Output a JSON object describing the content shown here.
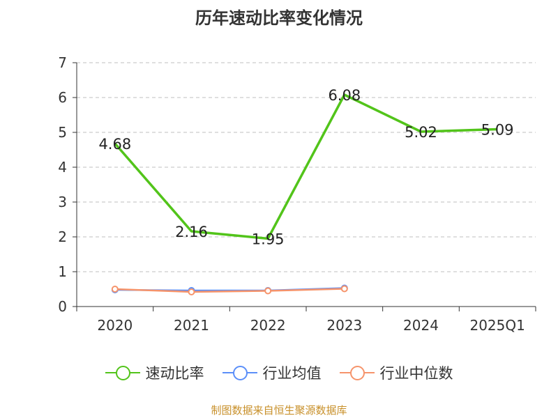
{
  "chart_data": {
    "type": "line",
    "title": "历年速动比率变化情况",
    "categories": [
      "2020",
      "2021",
      "2022",
      "2023",
      "2024",
      "2025Q1"
    ],
    "ylim": [
      0,
      7
    ],
    "yticks": [
      0,
      1,
      2,
      3,
      4,
      5,
      6,
      7
    ],
    "grid": true,
    "legend_position": "bottom",
    "series": [
      {
        "name": "速动比率",
        "color": "#52c41a",
        "values": [
          4.68,
          2.16,
          1.95,
          6.08,
          5.02,
          5.09
        ],
        "show_labels": true,
        "markers": false
      },
      {
        "name": "行业均值",
        "color": "#5b8ff9",
        "values": [
          0.48,
          0.46,
          0.46,
          0.53,
          null,
          null
        ],
        "show_labels": false,
        "markers": true
      },
      {
        "name": "行业中位数",
        "color": "#f6946b",
        "values": [
          0.5,
          0.42,
          0.45,
          0.51,
          null,
          null
        ],
        "show_labels": false,
        "markers": true
      }
    ]
  },
  "footer": {
    "source": "制图数据来自恒生聚源数据库"
  }
}
